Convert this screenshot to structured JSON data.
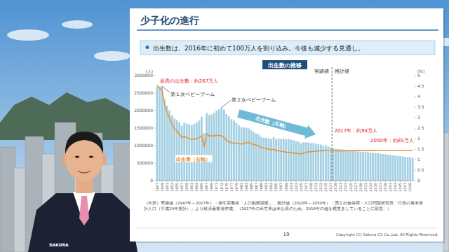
{
  "slide": {
    "title": "少子化の進行",
    "bullet": "出生数は、2016年に初めて100万人を割り込み。今後も減少する見通し。",
    "source": [
      "（出所）実績値（1947年～2017年）：厚生労働省「人口動態調査」、推計値（2018年～2050年）：国立社会保障・人口問題研究所「日本の将来推",
      "計人口（平成29年推計）」より経済産業省作成。（2017年の出生率は未公表のため、2016年の値を横置きしていることに留意。）"
    ],
    "page": "19",
    "copyright": "Copyright (C) Sakura CS Co.,Ltd. All Rights Reserved.",
    "logo": "SAKURA"
  },
  "chart_data": {
    "type": "bar",
    "title": "出生数の推移",
    "ylabel": "(人)",
    "y2label": "(%)",
    "x": [
      1947,
      1948,
      1949,
      1950,
      1951,
      1952,
      1953,
      1954,
      1955,
      1956,
      1957,
      1958,
      1959,
      1960,
      1961,
      1962,
      1963,
      1964,
      1965,
      1966,
      1967,
      1968,
      1969,
      1970,
      1971,
      1972,
      1973,
      1974,
      1975,
      1976,
      1977,
      1978,
      1979,
      1980,
      1981,
      1982,
      1983,
      1984,
      1985,
      1986,
      1987,
      1988,
      1989,
      1990,
      1991,
      1992,
      1993,
      1994,
      1995,
      1996,
      1997,
      1998,
      1999,
      2000,
      2001,
      2002,
      2003,
      2004,
      2005,
      2006,
      2007,
      2008,
      2009,
      2010,
      2011,
      2012,
      2013,
      2014,
      2015,
      2016,
      2017,
      2018,
      2019,
      2020,
      2021,
      2022,
      2023,
      2024,
      2025,
      2026,
      2027,
      2028,
      2029,
      2030,
      2031,
      2032,
      2033,
      2034,
      2035,
      2036,
      2037,
      2038,
      2039,
      2040,
      2041,
      2042,
      2043,
      2044,
      2045,
      2046,
      2047,
      2048,
      2049,
      2050
    ],
    "xlim": [
      1946.5,
      2050.5
    ],
    "xticks": [
      1947,
      1949,
      1951,
      1953,
      1955,
      1957,
      1959,
      1961,
      1963,
      1965,
      1967,
      1969,
      1971,
      1973,
      1975,
      1977,
      1979,
      1981,
      1983,
      1985,
      1987,
      1989,
      1991,
      1993,
      1995,
      1997,
      1999,
      2001,
      2003,
      2005,
      2007,
      2009,
      2011,
      2013,
      2015,
      2017,
      2019,
      2021,
      2023,
      2025,
      2027,
      2029,
      2031,
      2033,
      2035,
      2037,
      2039,
      2041,
      2043,
      2045,
      2047,
      2049
    ],
    "ylim": [
      0,
      3000000
    ],
    "yticks": [
      0,
      500000,
      1000000,
      1500000,
      2000000,
      2500000,
      3000000
    ],
    "y2lim": [
      0,
      5
    ],
    "y2ticks": [
      0,
      0.5,
      1,
      1.5,
      2,
      2.5,
      3,
      3.5,
      4,
      4.5,
      5
    ],
    "grid": false,
    "divider_x": 2017.5,
    "annotations": [
      {
        "text": "最高の出生数：約267万人",
        "x": 1947,
        "color": "#e02020"
      },
      {
        "text": "第１次ベビーブーム",
        "x": 1949,
        "color": "#222222"
      },
      {
        "text": "第２次ベビーブーム",
        "x": 1973,
        "color": "#222222"
      },
      {
        "text": "2017年：約94万人",
        "x": 2017,
        "color": "#e02020"
      },
      {
        "text": "2050年：約65万人",
        "x": 2050,
        "color": "#e02020"
      },
      {
        "text": "実績値",
        "x": 2017,
        "color": "#222222"
      },
      {
        "text": "推計値",
        "x": 2017,
        "color": "#222222"
      }
    ],
    "series": [
      {
        "name": "出生数（左軸）",
        "type": "bar",
        "color": "#a3d0e3",
        "values": [
          2679000,
          2682000,
          2697000,
          2338000,
          2138000,
          2005000,
          1868000,
          1770000,
          1731000,
          1665000,
          1567000,
          1653000,
          1626000,
          1606000,
          1589000,
          1619000,
          1660000,
          1717000,
          1824000,
          1361000,
          1936000,
          1872000,
          1890000,
          1934000,
          2001000,
          2039000,
          2092000,
          2030000,
          1901000,
          1833000,
          1755000,
          1709000,
          1643000,
          1577000,
          1529000,
          1515000,
          1509000,
          1490000,
          1432000,
          1383000,
          1347000,
          1314000,
          1247000,
          1222000,
          1223000,
          1209000,
          1188000,
          1238000,
          1187000,
          1207000,
          1192000,
          1203000,
          1178000,
          1191000,
          1171000,
          1154000,
          1124000,
          1111000,
          1063000,
          1093000,
          1090000,
          1091000,
          1070000,
          1071000,
          1051000,
          1037000,
          1030000,
          1004000,
          1006000,
          977000,
          946000,
          921000,
          910000,
          902000,
          895000,
          887000,
          878000,
          869000,
          859000,
          849000,
          840000,
          831000,
          825000,
          821000,
          816000,
          810000,
          803000,
          795000,
          787000,
          778000,
          769000,
          760000,
          751000,
          742000,
          733000,
          724000,
          715000,
          706000,
          698000,
          689000,
          680000,
          671000,
          663000,
          654000
        ]
      },
      {
        "name": "出生率（右軸）",
        "type": "line",
        "axis": "y2",
        "color": "#e5963f",
        "values": [
          4.54,
          4.4,
          4.32,
          3.65,
          3.26,
          2.98,
          2.69,
          2.48,
          2.37,
          2.22,
          2.04,
          2.11,
          2.04,
          2.0,
          1.96,
          1.98,
          2.0,
          2.05,
          2.14,
          1.58,
          2.23,
          2.13,
          2.13,
          2.13,
          2.16,
          2.14,
          2.14,
          2.05,
          1.91,
          1.85,
          1.8,
          1.79,
          1.77,
          1.75,
          1.74,
          1.77,
          1.8,
          1.81,
          1.76,
          1.72,
          1.69,
          1.66,
          1.57,
          1.54,
          1.53,
          1.5,
          1.46,
          1.5,
          1.42,
          1.43,
          1.39,
          1.38,
          1.34,
          1.36,
          1.33,
          1.32,
          1.29,
          1.29,
          1.26,
          1.32,
          1.34,
          1.37,
          1.37,
          1.39,
          1.39,
          1.41,
          1.43,
          1.42,
          1.45,
          1.44,
          1.44,
          1.42,
          1.42,
          1.42,
          1.42,
          1.42,
          1.42,
          1.43,
          1.43,
          1.43,
          1.43,
          1.43,
          1.43,
          1.43,
          1.43,
          1.43,
          1.43,
          1.43,
          1.44,
          1.44,
          1.44,
          1.44,
          1.44,
          1.44,
          1.44,
          1.44,
          1.44,
          1.44,
          1.44,
          1.44,
          1.44,
          1.44,
          1.44,
          1.44
        ]
      }
    ]
  }
}
